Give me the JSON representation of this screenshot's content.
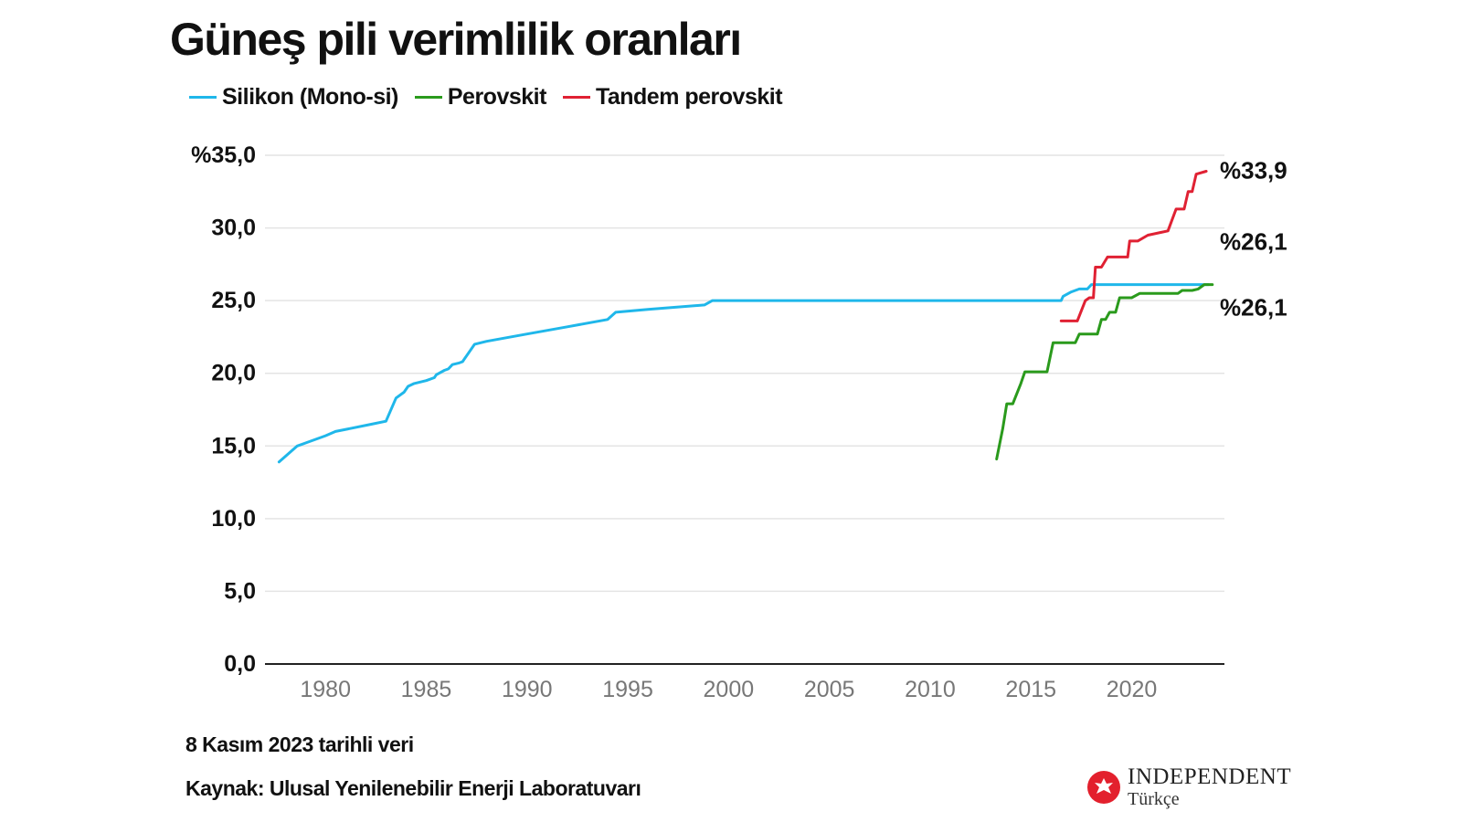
{
  "title": "Güneş pili verimlilik oranları",
  "legend": [
    {
      "label": "Silikon (Mono-si)",
      "color": "#1fb7ea"
    },
    {
      "label": "Perovskit",
      "color": "#2a9a1c"
    },
    {
      "label": "Tandem perovskit",
      "color": "#e02133"
    }
  ],
  "notes": {
    "date": "8 Kasım 2023 tarihli veri",
    "source": "Kaynak: Ulusal Yenilenebilir Enerji Laboratuvarı"
  },
  "logo": {
    "name": "INDEPENDENT",
    "sub": "Türkçe"
  },
  "chart_data": {
    "type": "line",
    "title": "Güneş pili verimlilik oranları",
    "xlabel": "",
    "ylabel": "",
    "xlim": [
      1977,
      2024.6
    ],
    "ylim": [
      0,
      35
    ],
    "grid": true,
    "legend_position": "top-left",
    "y_ticks": [
      {
        "value": 35,
        "label": "%35,0"
      },
      {
        "value": 30,
        "label": "30,0"
      },
      {
        "value": 25,
        "label": "25,0"
      },
      {
        "value": 20,
        "label": "20,0"
      },
      {
        "value": 15,
        "label": "15,0"
      },
      {
        "value": 10,
        "label": "10,0"
      },
      {
        "value": 5,
        "label": "5,0"
      },
      {
        "value": 0,
        "label": "0,0"
      }
    ],
    "x_ticks": [
      {
        "value": 1980,
        "label": "1980"
      },
      {
        "value": 1985,
        "label": "1985"
      },
      {
        "value": 1990,
        "label": "1990"
      },
      {
        "value": 1995,
        "label": "1995"
      },
      {
        "value": 2000,
        "label": "2000"
      },
      {
        "value": 2005,
        "label": "2005"
      },
      {
        "value": 2010,
        "label": "2010"
      },
      {
        "value": 2015,
        "label": "2015"
      },
      {
        "value": 2020,
        "label": "2020"
      }
    ],
    "series": [
      {
        "name": "Silikon (Mono-si)",
        "color": "#1fb7ea",
        "end_label": "%26,1",
        "points": [
          [
            1977.7,
            13.9
          ],
          [
            1978.6,
            15.0
          ],
          [
            1979.0,
            15.2
          ],
          [
            1980.0,
            15.7
          ],
          [
            1980.5,
            16.0
          ],
          [
            1982.3,
            16.5
          ],
          [
            1983.0,
            16.7
          ],
          [
            1983.5,
            18.3
          ],
          [
            1983.9,
            18.7
          ],
          [
            1984.1,
            19.1
          ],
          [
            1984.4,
            19.3
          ],
          [
            1985.0,
            19.5
          ],
          [
            1985.4,
            19.7
          ],
          [
            1985.5,
            19.9
          ],
          [
            1985.9,
            20.2
          ],
          [
            1986.1,
            20.3
          ],
          [
            1986.3,
            20.6
          ],
          [
            1986.6,
            20.7
          ],
          [
            1986.8,
            20.8
          ],
          [
            1987.4,
            22.0
          ],
          [
            1988.0,
            22.2
          ],
          [
            1990.0,
            22.7
          ],
          [
            1992.0,
            23.2
          ],
          [
            1994.0,
            23.7
          ],
          [
            1994.4,
            24.2
          ],
          [
            1996.0,
            24.4
          ],
          [
            1998.8,
            24.7
          ],
          [
            1999.2,
            25.0
          ],
          [
            2016.5,
            25.0
          ],
          [
            2016.6,
            25.3
          ],
          [
            2017.0,
            25.6
          ],
          [
            2017.4,
            25.8
          ],
          [
            2017.8,
            25.8
          ],
          [
            2018.0,
            26.1
          ],
          [
            2023.8,
            26.1
          ]
        ]
      },
      {
        "name": "Perovskit",
        "color": "#2a9a1c",
        "end_label": "%26,1",
        "points": [
          [
            2013.3,
            14.1
          ],
          [
            2013.6,
            16.2
          ],
          [
            2013.8,
            17.9
          ],
          [
            2014.1,
            17.9
          ],
          [
            2014.5,
            19.3
          ],
          [
            2014.7,
            20.1
          ],
          [
            2015.8,
            20.1
          ],
          [
            2016.1,
            22.1
          ],
          [
            2017.0,
            22.1
          ],
          [
            2017.2,
            22.1
          ],
          [
            2017.4,
            22.7
          ],
          [
            2017.6,
            22.7
          ],
          [
            2018.3,
            22.7
          ],
          [
            2018.5,
            23.7
          ],
          [
            2018.7,
            23.7
          ],
          [
            2018.9,
            24.2
          ],
          [
            2019.2,
            24.2
          ],
          [
            2019.4,
            25.2
          ],
          [
            2019.7,
            25.2
          ],
          [
            2020.0,
            25.2
          ],
          [
            2020.4,
            25.5
          ],
          [
            2021.5,
            25.5
          ],
          [
            2022.3,
            25.5
          ],
          [
            2022.5,
            25.7
          ],
          [
            2023.0,
            25.7
          ],
          [
            2023.3,
            25.8
          ],
          [
            2023.6,
            26.1
          ],
          [
            2024.0,
            26.1
          ]
        ]
      },
      {
        "name": "Tandem perovskit",
        "color": "#e02133",
        "end_label": "%33,9",
        "points": [
          [
            2016.5,
            23.6
          ],
          [
            2017.3,
            23.6
          ],
          [
            2017.7,
            25.0
          ],
          [
            2017.9,
            25.2
          ],
          [
            2018.1,
            25.2
          ],
          [
            2018.2,
            27.3
          ],
          [
            2018.5,
            27.3
          ],
          [
            2018.8,
            28.0
          ],
          [
            2019.5,
            28.0
          ],
          [
            2019.8,
            28.0
          ],
          [
            2019.9,
            29.1
          ],
          [
            2020.3,
            29.1
          ],
          [
            2020.8,
            29.5
          ],
          [
            2021.8,
            29.8
          ],
          [
            2022.2,
            31.3
          ],
          [
            2022.6,
            31.3
          ],
          [
            2022.8,
            32.5
          ],
          [
            2023.0,
            32.5
          ],
          [
            2023.2,
            33.7
          ],
          [
            2023.7,
            33.9
          ]
        ]
      }
    ]
  }
}
